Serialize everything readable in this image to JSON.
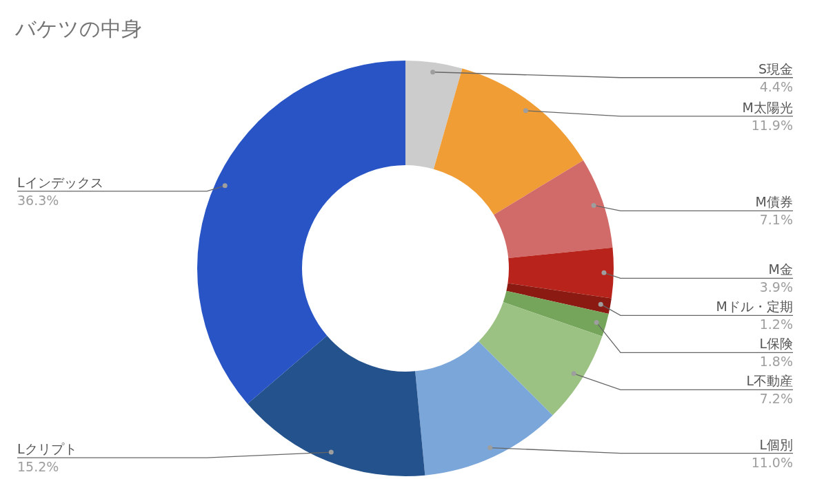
{
  "chart_data": {
    "type": "donut",
    "title": "バケツの中身",
    "categories": [
      "S現金",
      "M太陽光",
      "M債券",
      "M金",
      "Mドル・定期",
      "L保険",
      "L不動産",
      "L個別",
      "Lクリプト",
      "Lインデックス"
    ],
    "values": [
      4.4,
      11.9,
      7.1,
      3.9,
      1.2,
      1.8,
      7.2,
      11.0,
      15.2,
      36.3
    ],
    "colors": [
      "#cccccc",
      "#f09d36",
      "#d16b69",
      "#b8241b",
      "#8b1a12",
      "#74a55b",
      "#9cc283",
      "#7ba6d9",
      "#24528c",
      "#2854c5"
    ],
    "value_labels": [
      "4.4%",
      "11.9%",
      "7.1%",
      "3.9%",
      "1.2%",
      "1.8%",
      "7.2%",
      "11.0%",
      "15.2%",
      "36.3%"
    ]
  }
}
